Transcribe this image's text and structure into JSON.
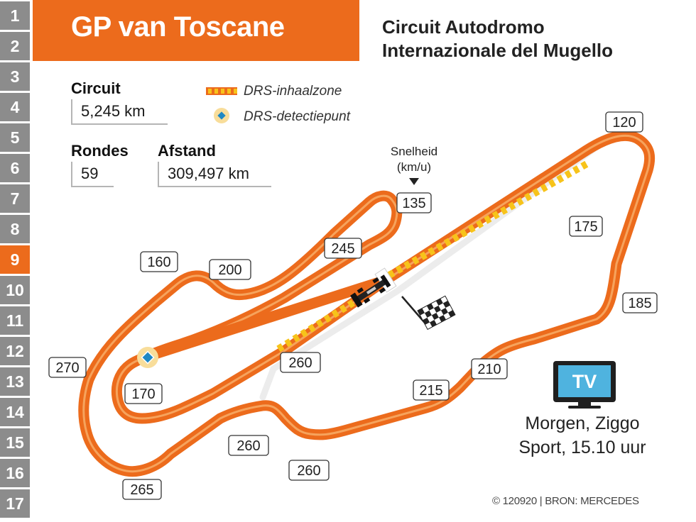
{
  "title": "GP van Toscane",
  "subtitle_line1": "Circuit Autodromo",
  "subtitle_line2": "Internazionale del Mugello",
  "rows": [
    "1",
    "2",
    "3",
    "4",
    "5",
    "6",
    "7",
    "8",
    "9",
    "10",
    "11",
    "12",
    "13",
    "14",
    "15",
    "16",
    "17"
  ],
  "active_row": "9",
  "stats": {
    "circuit_label": "Circuit",
    "circuit_value": "5,245 km",
    "laps_label": "Rondes",
    "laps_value": "59",
    "distance_label": "Afstand",
    "distance_value": "309,497 km"
  },
  "legend": {
    "drs_zone": "DRS-inhaalzone",
    "drs_detection": "DRS-detectiepunt"
  },
  "speed_header": {
    "line1": "Snelheid",
    "line2": "(km/u)"
  },
  "speeds": {
    "s120": "120",
    "s135": "135",
    "s175": "175",
    "s185": "185",
    "s245": "245",
    "s200": "200",
    "s160": "160",
    "s270": "270",
    "s170": "170",
    "s260_main": "260",
    "s215": "215",
    "s210": "210",
    "s260_a": "260",
    "s260_b": "260",
    "s265": "265"
  },
  "tv": {
    "label": "TV",
    "line1": "Morgen, Ziggo",
    "line2": "Sport, 15.10 uur"
  },
  "credit": "© 120920 | BRON: MERCEDES",
  "colors": {
    "accent": "#ec6b1c",
    "sidebar_gray": "#8c8c8c",
    "drs_yellow": "#f7c31a",
    "tv_blue": "#4fb3df",
    "track_inner": "#f6a35c"
  }
}
